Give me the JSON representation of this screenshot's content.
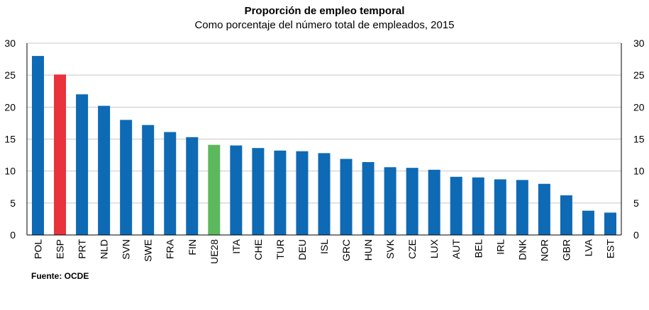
{
  "chart_data": {
    "type": "bar",
    "title": "Proporción de empleo temporal",
    "subtitle": "Como porcentaje del número total de empleados, 2015",
    "categories": [
      "POL",
      "ESP",
      "PRT",
      "NLD",
      "SVN",
      "SWE",
      "FRA",
      "FIN",
      "UE28",
      "ITA",
      "CHE",
      "TUR",
      "DEU",
      "ISL",
      "GRC",
      "HUN",
      "SVK",
      "CZE",
      "LUX",
      "AUT",
      "BEL",
      "IRL",
      "DNK",
      "NOR",
      "GBR",
      "LVA",
      "EST"
    ],
    "values": [
      28.0,
      25.1,
      22.0,
      20.2,
      18.0,
      17.2,
      16.1,
      15.3,
      14.1,
      14.0,
      13.6,
      13.2,
      13.1,
      12.8,
      11.9,
      11.4,
      10.6,
      10.5,
      10.2,
      9.1,
      9.0,
      8.7,
      8.6,
      8.0,
      6.2,
      3.8,
      3.5
    ],
    "highlight": {
      "ESP": "#e8323c",
      "UE28": "#5cb85c"
    },
    "bar_color": "#0e6ab4",
    "ylim": [
      0,
      30
    ],
    "yticks": [
      0,
      5,
      10,
      15,
      20,
      25,
      30
    ],
    "grid": true,
    "xlabel": "",
    "ylabel": ""
  },
  "source": "Fuente: OCDE"
}
